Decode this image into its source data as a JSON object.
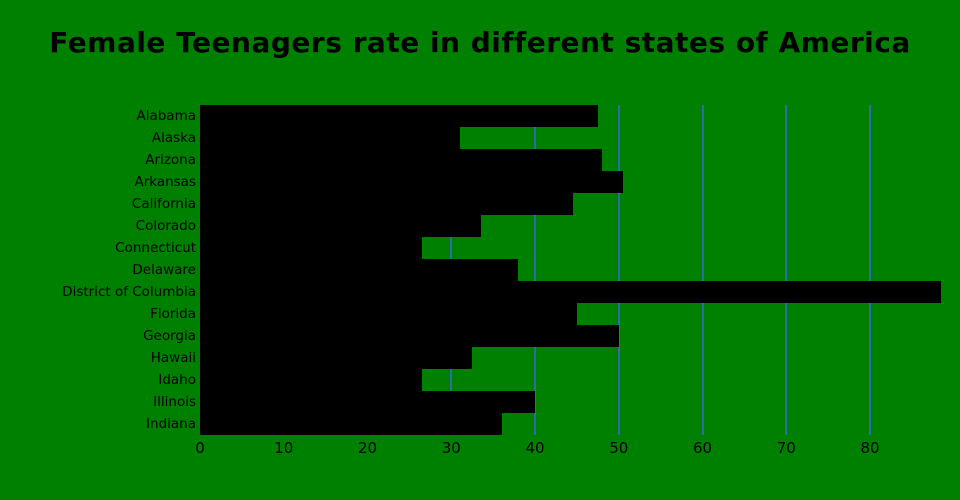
{
  "page": {
    "background": "#008000"
  },
  "chart_data": {
    "type": "bar",
    "orientation": "horizontal",
    "title": "Female Teenagers rate in different states of America",
    "categories": [
      "Alabama",
      "Alaska",
      "Arizona",
      "Arkansas",
      "California",
      "Colorado",
      "Connecticut",
      "Delaware",
      "District of Columbia",
      "Florida",
      "Georgia",
      "Hawaii",
      "Idaho",
      "Illinois",
      "Indiana"
    ],
    "values": [
      47.5,
      31,
      48,
      50.5,
      44.5,
      33.5,
      26.5,
      38,
      88.5,
      45,
      50,
      32.5,
      26.5,
      40,
      36
    ],
    "xlabel": "",
    "ylabel": "",
    "xticks": [
      0,
      10,
      20,
      30,
      40,
      50,
      60,
      70,
      80
    ],
    "xlim": [
      0,
      88.5
    ],
    "grid": true,
    "legend": false,
    "bar_color": "#000000",
    "grid_color": "#2e6ea6",
    "text_color": "#000000",
    "background_color": "#008000"
  }
}
